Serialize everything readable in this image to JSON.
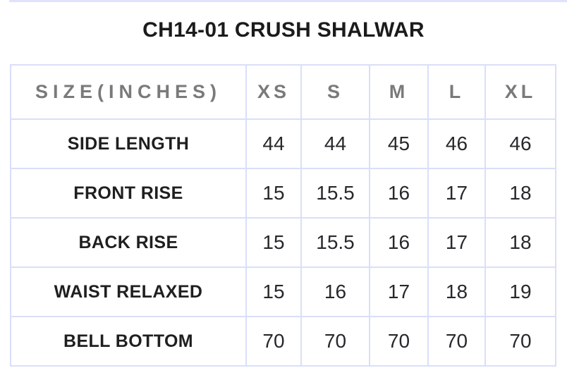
{
  "page": {
    "title": "CH14-01 CRUSH SHALWAR"
  },
  "colors": {
    "background": "#ffffff",
    "top_strip": "#dee2fc",
    "table_border": "#d9dff8",
    "title_text": "#1b1b1b",
    "header_text": "#7a7a7a",
    "label_text": "#1f1f1f",
    "value_text": "#28282c"
  },
  "chart_data": {
    "type": "table",
    "title": "CH14-01 CRUSH SHALWAR",
    "unit": "inches",
    "columns": [
      "SIZE(INCHES)",
      "XS",
      "S",
      "M",
      "L",
      "XL"
    ],
    "rows": [
      {
        "label": "SIDE LENGTH",
        "values": [
          "44",
          "44",
          "45",
          "46",
          "46"
        ]
      },
      {
        "label": "FRONT RISE",
        "values": [
          "15",
          "15.5",
          "16",
          "17",
          "18"
        ]
      },
      {
        "label": "BACK RISE",
        "values": [
          "15",
          "15.5",
          "16",
          "17",
          "18"
        ]
      },
      {
        "label": "WAIST RELAXED",
        "values": [
          "15",
          "16",
          "17",
          "18",
          "19"
        ]
      },
      {
        "label": "BELL BOTTOM",
        "values": [
          "70",
          "70",
          "70",
          "70",
          "70"
        ]
      }
    ]
  }
}
